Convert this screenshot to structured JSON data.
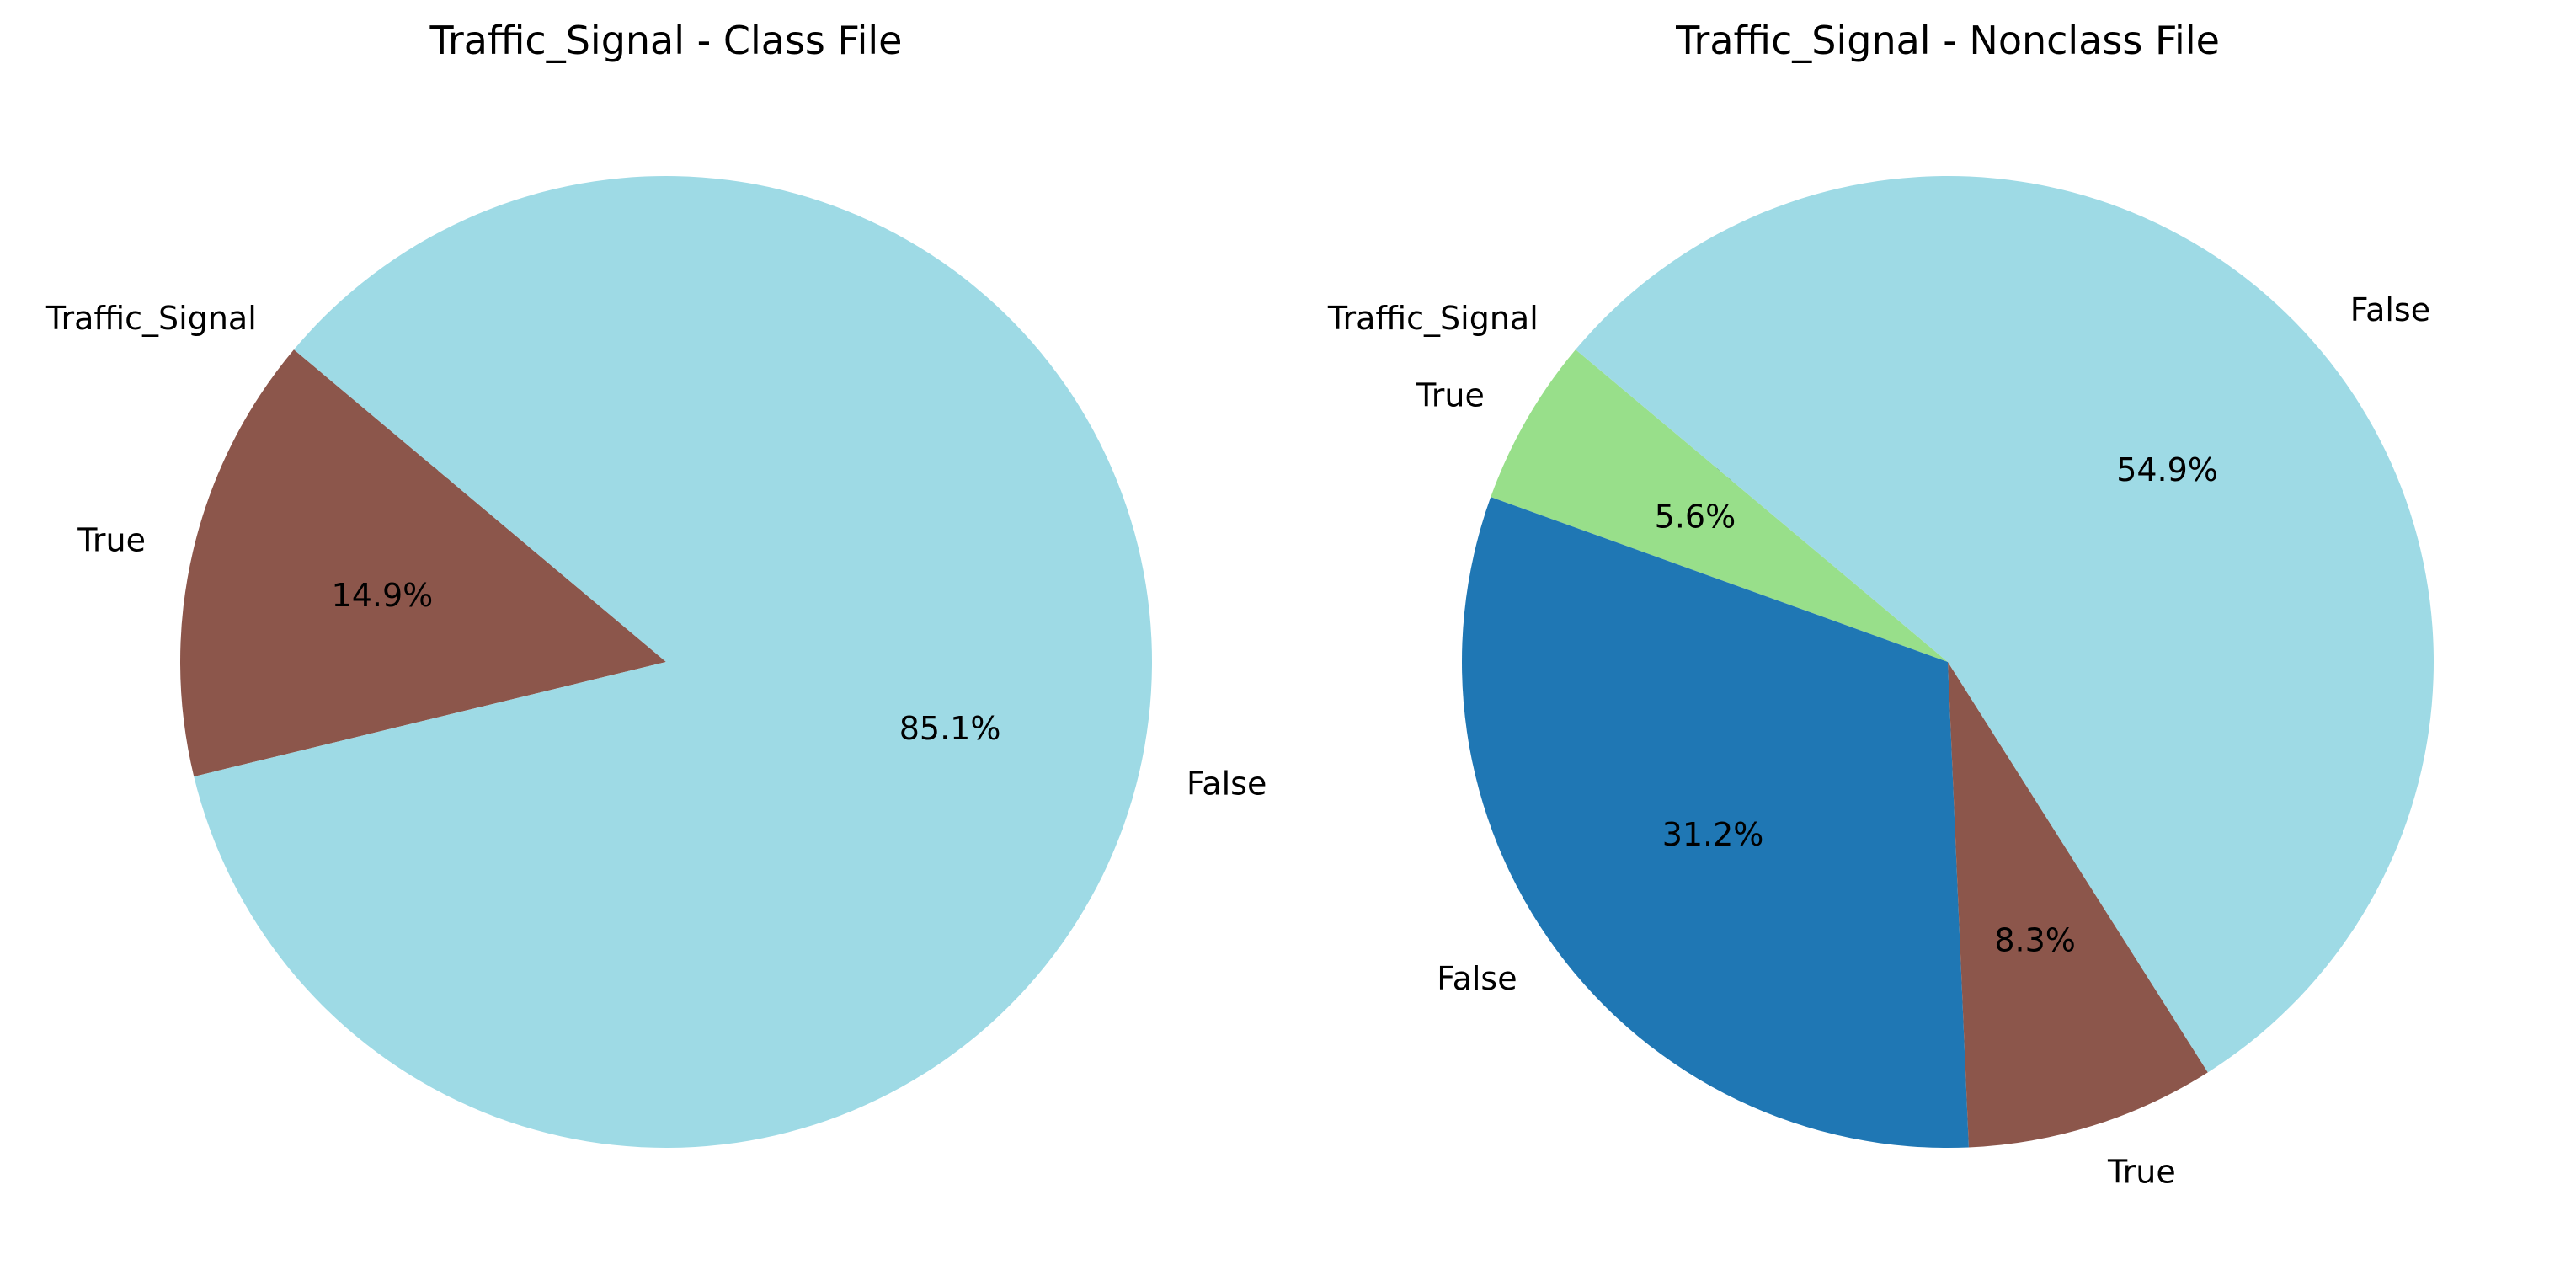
{
  "chart_data": [
    {
      "type": "pie",
      "title": "Traffic_Signal - Class File",
      "slices": [
        {
          "label": "Traffic_Signal",
          "value": 0.0,
          "pct_label": "0.0%",
          "color": "#9edae5"
        },
        {
          "label": "True",
          "value": 14.9,
          "pct_label": "14.9%",
          "color": "#8c564b"
        },
        {
          "label": "False",
          "value": 85.1,
          "pct_label": "85.1%",
          "color": "#9edae5"
        }
      ]
    },
    {
      "type": "pie",
      "title": "Traffic_Signal - Nonclass File",
      "slices": [
        {
          "label": "Traffic_Signal",
          "value": 0.0,
          "pct_label": "0.0%",
          "color": "#9edae5"
        },
        {
          "label": "True",
          "value": 5.6,
          "pct_label": "5.6%",
          "color": "#98df8a"
        },
        {
          "label": "False",
          "value": 31.2,
          "pct_label": "31.2%",
          "color": "#1f77b4"
        },
        {
          "label": "True",
          "value": 8.3,
          "pct_label": "8.3%",
          "color": "#8c564b"
        },
        {
          "label": "False",
          "value": 54.9,
          "pct_label": "54.9%",
          "color": "#9edae5"
        }
      ]
    }
  ]
}
